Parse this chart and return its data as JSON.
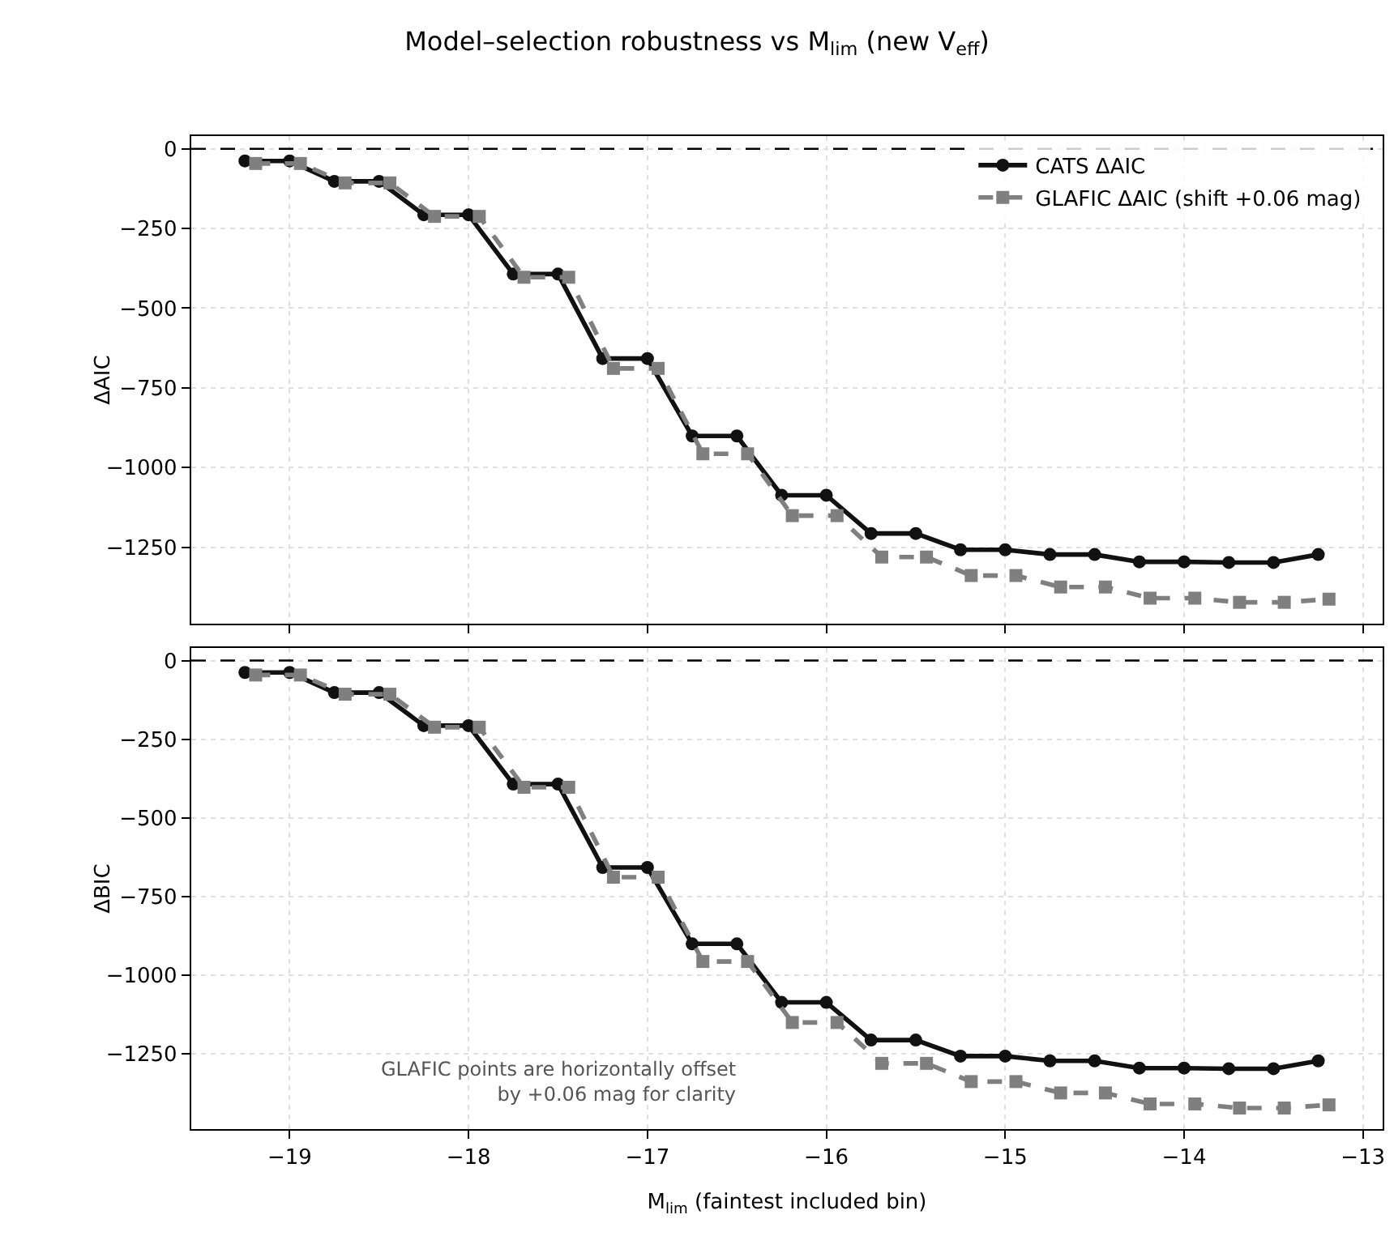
{
  "chart_data": [
    {
      "type": "line",
      "title": "Model–selection robustness vs M$_{lim}$ (new V$_{eff}$)",
      "ylabel": "ΔAIC",
      "x": [
        -19.25,
        -19,
        -18.75,
        -18.5,
        -18.25,
        -18,
        -17.75,
        -17.5,
        -17.25,
        -17,
        -16.75,
        -16.5,
        -16.25,
        -16,
        -15.75,
        -15.5,
        -15.25,
        -15,
        -14.75,
        -14.5,
        -14.25,
        -14,
        -13.75,
        -13.5,
        -13.25
      ],
      "series": [
        {
          "name": "CATS ΔAIC",
          "color": "#111111",
          "marker": "circle",
          "line_style": "solid",
          "values": [
            -38,
            -38,
            -102,
            -102,
            -207,
            -207,
            -393,
            -393,
            -658,
            -658,
            -901,
            -901,
            -1087,
            -1087,
            -1207,
            -1207,
            -1258,
            -1258,
            -1273,
            -1273,
            -1296,
            -1296,
            -1298,
            -1298,
            -1273
          ]
        },
        {
          "name": "GLAFIC ΔAIC (shift +0.06 mag)",
          "color": "#7f7f7f",
          "marker": "square",
          "line_style": "dashed",
          "x": [
            -19.19,
            -18.94,
            -18.69,
            -18.44,
            -18.19,
            -17.94,
            -17.69,
            -17.44,
            -17.19,
            -16.94,
            -16.69,
            -16.44,
            -16.19,
            -15.94,
            -15.69,
            -15.44,
            -15.19,
            -14.94,
            -14.69,
            -14.44,
            -14.19,
            -13.94,
            -13.69,
            -13.44,
            -13.19
          ],
          "values": [
            -46,
            -46,
            -107,
            -107,
            -212,
            -212,
            -403,
            -403,
            -689,
            -689,
            -957,
            -957,
            -1151,
            -1151,
            -1281,
            -1281,
            -1339,
            -1339,
            -1375,
            -1375,
            -1410,
            -1410,
            -1423,
            -1423,
            -1413
          ]
        }
      ],
      "xlim": [
        -19.55,
        -12.89
      ],
      "xticks": [
        {
          "value": -19,
          "label": null
        },
        {
          "value": -18,
          "label": null
        },
        {
          "value": -17,
          "label": null
        },
        {
          "value": -16,
          "label": null
        },
        {
          "value": -15,
          "label": null
        },
        {
          "value": -14,
          "label": null
        },
        {
          "value": -13,
          "label": null
        }
      ],
      "ylim": [
        -1490,
        40
      ],
      "yticks": [
        0,
        {
          "value": -250,
          "label": "−250"
        },
        {
          "value": -500,
          "label": "−500"
        },
        {
          "value": -750,
          "label": "−750"
        },
        {
          "value": -1000,
          "label": "−1000"
        },
        {
          "value": -1250,
          "label": "−1250"
        }
      ],
      "tick_labels": "y",
      "grid": true,
      "legend": "top right",
      "ref_lines": [
        {
          "axis": "y",
          "value": 0,
          "color": "#000000",
          "line_style": "dashed"
        }
      ]
    },
    {
      "type": "line",
      "xlabel": "M$_{lim}$ (faintest included bin)",
      "ylabel": "ΔBIC",
      "x": [
        -19.25,
        -19,
        -18.75,
        -18.5,
        -18.25,
        -18,
        -17.75,
        -17.5,
        -17.25,
        -17,
        -16.75,
        -16.5,
        -16.25,
        -16,
        -15.75,
        -15.5,
        -15.25,
        -15,
        -14.75,
        -14.5,
        -14.25,
        -14,
        -13.75,
        -13.5,
        -13.25
      ],
      "series": [
        {
          "color": "#111111",
          "marker": "circle",
          "line_style": "solid",
          "values": [
            -38,
            -38,
            -102,
            -102,
            -207,
            -207,
            -393,
            -393,
            -658,
            -658,
            -901,
            -901,
            -1087,
            -1087,
            -1207,
            -1207,
            -1258,
            -1258,
            -1273,
            -1273,
            -1296,
            -1296,
            -1298,
            -1298,
            -1273
          ]
        },
        {
          "color": "#7f7f7f",
          "marker": "square",
          "line_style": "dashed",
          "x": [
            -19.19,
            -18.94,
            -18.69,
            -18.44,
            -18.19,
            -17.94,
            -17.69,
            -17.44,
            -17.19,
            -16.94,
            -16.69,
            -16.44,
            -16.19,
            -15.94,
            -15.69,
            -15.44,
            -15.19,
            -14.94,
            -14.69,
            -14.44,
            -14.19,
            -13.94,
            -13.69,
            -13.44,
            -13.19
          ],
          "values": [
            -46,
            -46,
            -107,
            -107,
            -212,
            -212,
            -403,
            -403,
            -689,
            -689,
            -957,
            -957,
            -1151,
            -1151,
            -1281,
            -1281,
            -1339,
            -1339,
            -1375,
            -1375,
            -1410,
            -1410,
            -1423,
            -1423,
            -1413
          ]
        }
      ],
      "xlim": [
        -19.55,
        -12.89
      ],
      "xticks": [
        {
          "value": -19,
          "label": "−19"
        },
        {
          "value": -18,
          "label": "−18"
        },
        {
          "value": -17,
          "label": "−17"
        },
        {
          "value": -16,
          "label": "−16"
        },
        {
          "value": -15,
          "label": "−15"
        },
        {
          "value": -14,
          "label": "−14"
        },
        {
          "value": -13,
          "label": "−13"
        }
      ],
      "ylim": [
        -1490,
        40
      ],
      "yticks": [
        0,
        {
          "value": -250,
          "label": "−250"
        },
        {
          "value": -500,
          "label": "−500"
        },
        {
          "value": -750,
          "label": "−750"
        },
        {
          "value": -1000,
          "label": "−1000"
        },
        {
          "value": -1250,
          "label": "−1250"
        }
      ],
      "grid": true,
      "ref_lines": [
        {
          "axis": "y",
          "value": 0,
          "color": "#000000",
          "line_style": "dashed"
        }
      ],
      "annotations": [
        "GLAFIC points are horizontally offset\nby +0.06 mag for clarity"
      ]
    }
  ]
}
